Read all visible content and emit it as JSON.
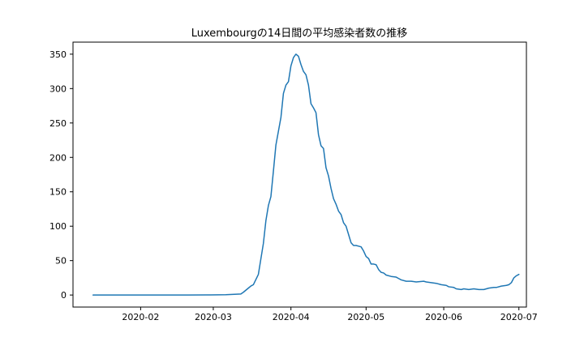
{
  "chart_data": {
    "type": "line",
    "title": "Luxembourgの14日間の平均感染者数の推移",
    "xlabel": "",
    "ylabel": "",
    "x_tick_labels": [
      "2020-02",
      "2020-03",
      "2020-04",
      "2020-05",
      "2020-06",
      "2020-07"
    ],
    "x_tick_dates": [
      "2020-02-01",
      "2020-03-01",
      "2020-04-01",
      "2020-05-01",
      "2020-06-01",
      "2020-07-01"
    ],
    "y_tick_labels": [
      "0",
      "50",
      "100",
      "150",
      "200",
      "250",
      "300",
      "350"
    ],
    "y_ticks": [
      0,
      50,
      100,
      150,
      200,
      250,
      300,
      350
    ],
    "xlim": [
      "2020-01-05",
      "2020-07-04"
    ],
    "ylim": [
      -17.5,
      367.5
    ],
    "grid": false,
    "line_color": "#1f77b4",
    "series": [
      {
        "name": "",
        "points": [
          [
            "2020-01-13",
            0
          ],
          [
            "2020-02-01",
            0
          ],
          [
            "2020-02-20",
            0
          ],
          [
            "2020-02-29",
            0.2
          ],
          [
            "2020-03-06",
            0.5
          ],
          [
            "2020-03-12",
            1.5
          ],
          [
            "2020-03-13",
            4
          ],
          [
            "2020-03-15",
            10
          ],
          [
            "2020-03-16",
            13
          ],
          [
            "2020-03-17",
            15
          ],
          [
            "2020-03-19",
            30
          ],
          [
            "2020-03-21",
            75
          ],
          [
            "2020-03-22",
            108
          ],
          [
            "2020-03-23",
            130
          ],
          [
            "2020-03-24",
            143
          ],
          [
            "2020-03-25",
            180
          ],
          [
            "2020-03-26",
            218
          ],
          [
            "2020-03-27",
            238
          ],
          [
            "2020-03-28",
            258
          ],
          [
            "2020-03-29",
            293
          ],
          [
            "2020-03-30",
            305
          ],
          [
            "2020-03-31",
            310
          ],
          [
            "2020-04-01",
            333
          ],
          [
            "2020-04-02",
            345
          ],
          [
            "2020-04-03",
            350
          ],
          [
            "2020-04-04",
            347
          ],
          [
            "2020-04-05",
            335
          ],
          [
            "2020-04-06",
            325
          ],
          [
            "2020-04-07",
            320
          ],
          [
            "2020-04-08",
            305
          ],
          [
            "2020-04-09",
            278
          ],
          [
            "2020-04-10",
            272
          ],
          [
            "2020-04-11",
            265
          ],
          [
            "2020-04-12",
            233
          ],
          [
            "2020-04-13",
            217
          ],
          [
            "2020-04-14",
            213
          ],
          [
            "2020-04-15",
            185
          ],
          [
            "2020-04-16",
            173
          ],
          [
            "2020-04-17",
            155
          ],
          [
            "2020-04-18",
            140
          ],
          [
            "2020-04-19",
            132
          ],
          [
            "2020-04-20",
            122
          ],
          [
            "2020-04-21",
            117
          ],
          [
            "2020-04-22",
            105
          ],
          [
            "2020-04-23",
            100
          ],
          [
            "2020-04-24",
            88
          ],
          [
            "2020-04-25",
            76
          ],
          [
            "2020-04-26",
            72
          ],
          [
            "2020-04-27",
            72
          ],
          [
            "2020-04-28",
            71
          ],
          [
            "2020-04-29",
            70
          ],
          [
            "2020-04-30",
            64
          ],
          [
            "2020-05-01",
            56
          ],
          [
            "2020-05-02",
            53
          ],
          [
            "2020-05-03",
            45
          ],
          [
            "2020-05-04",
            45
          ],
          [
            "2020-05-05",
            44
          ],
          [
            "2020-05-06",
            37
          ],
          [
            "2020-05-07",
            33
          ],
          [
            "2020-05-08",
            32
          ],
          [
            "2020-05-09",
            29
          ],
          [
            "2020-05-11",
            27
          ],
          [
            "2020-05-13",
            26
          ],
          [
            "2020-05-14",
            24
          ],
          [
            "2020-05-15",
            22
          ],
          [
            "2020-05-17",
            20
          ],
          [
            "2020-05-19",
            20
          ],
          [
            "2020-05-21",
            19
          ],
          [
            "2020-05-24",
            20
          ],
          [
            "2020-05-25",
            19
          ],
          [
            "2020-05-27",
            18
          ],
          [
            "2020-05-29",
            17
          ],
          [
            "2020-05-31",
            15
          ],
          [
            "2020-06-02",
            14
          ],
          [
            "2020-06-03",
            12
          ],
          [
            "2020-06-05",
            11
          ],
          [
            "2020-06-06",
            9
          ],
          [
            "2020-06-08",
            8
          ],
          [
            "2020-06-09",
            9
          ],
          [
            "2020-06-11",
            8
          ],
          [
            "2020-06-13",
            9
          ],
          [
            "2020-06-15",
            8
          ],
          [
            "2020-06-17",
            8
          ],
          [
            "2020-06-19",
            10
          ],
          [
            "2020-06-21",
            11
          ],
          [
            "2020-06-22",
            11
          ],
          [
            "2020-06-24",
            13
          ],
          [
            "2020-06-26",
            14
          ],
          [
            "2020-06-27",
            15
          ],
          [
            "2020-06-28",
            18
          ],
          [
            "2020-06-29",
            25
          ],
          [
            "2020-06-30",
            28
          ],
          [
            "2020-07-01",
            30
          ]
        ]
      }
    ]
  }
}
